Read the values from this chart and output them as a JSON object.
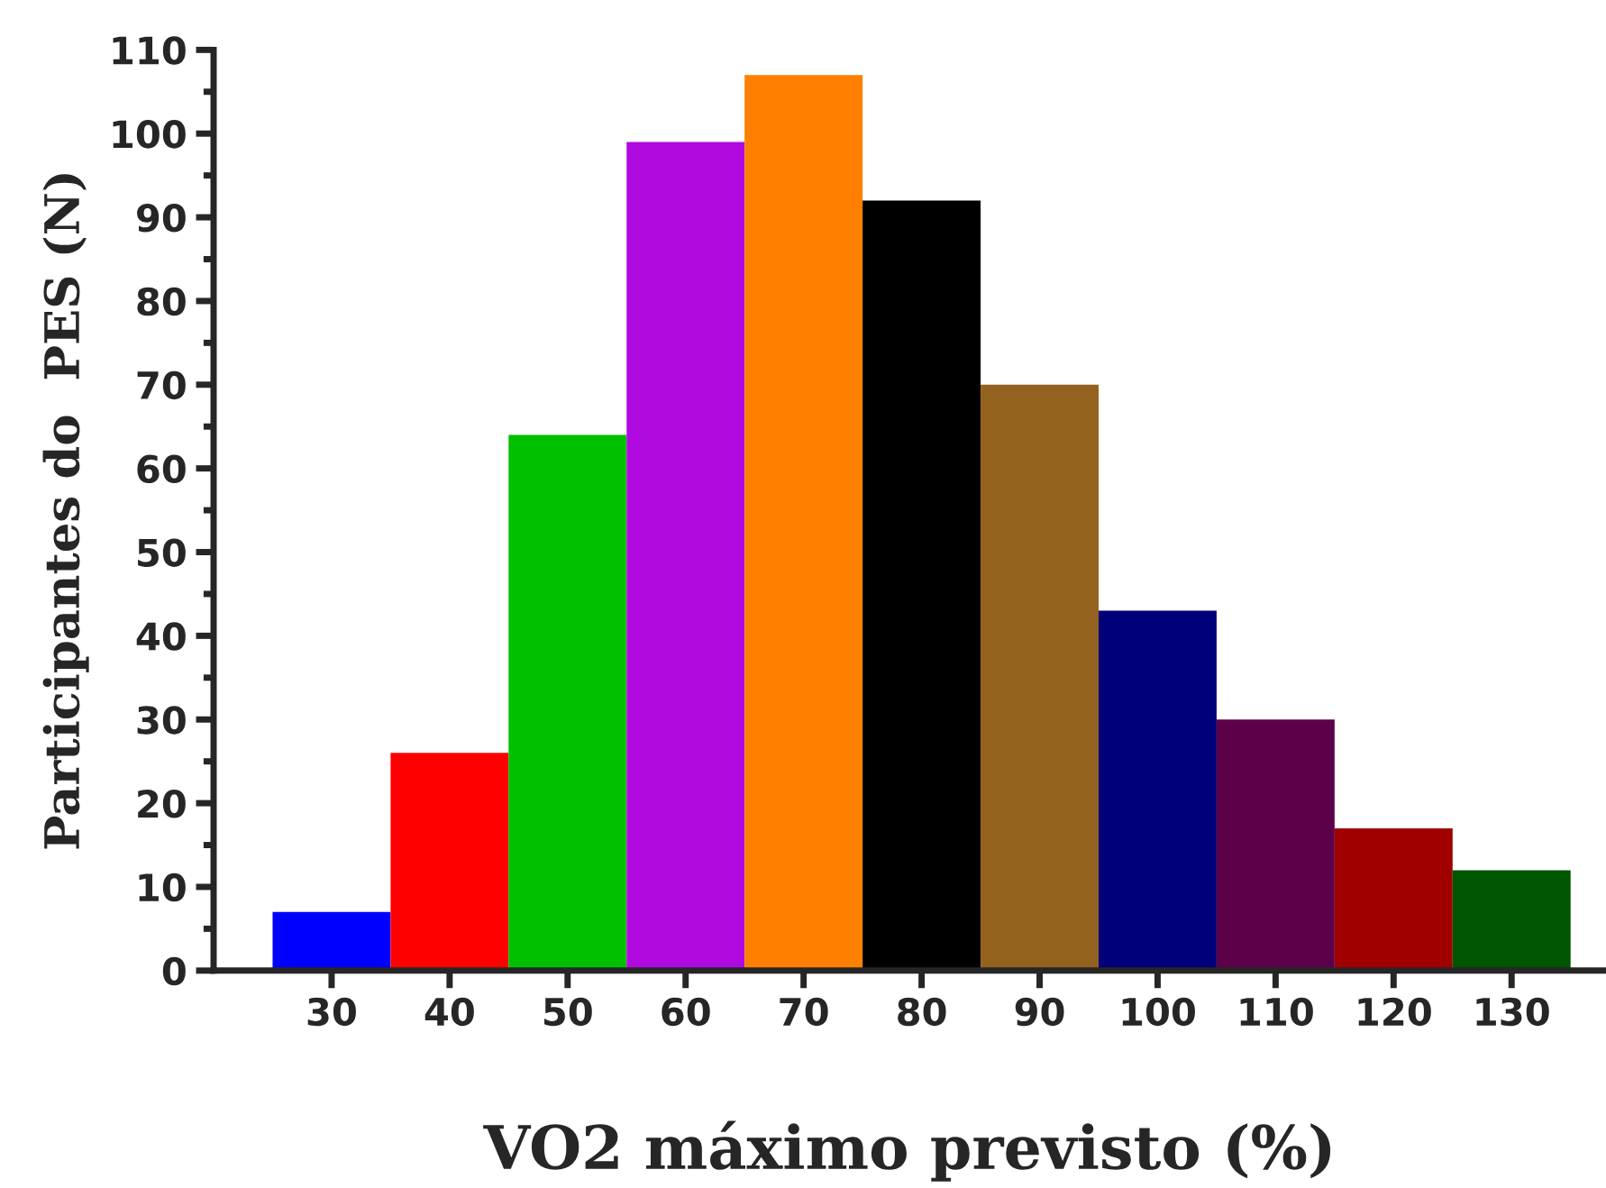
{
  "chart_data": {
    "type": "histogram",
    "xlabel": "VO2 máximo previsto (%)",
    "ylabel": "Participantes do  PES (N)",
    "bins": [
      25,
      35,
      45,
      55,
      65,
      75,
      85,
      95,
      105,
      115,
      125,
      135
    ],
    "values": [
      7,
      26,
      64,
      99,
      107,
      92,
      70,
      43,
      30,
      17,
      12
    ],
    "colors": [
      "#0000ff",
      "#ff0000",
      "#00c000",
      "#b00ae0",
      "#ff8000",
      "#000000",
      "#94621f",
      "#00007b",
      "#5c004a",
      "#a00000",
      "#005500"
    ],
    "xlim": [
      20,
      138
    ],
    "xticks": [
      30,
      40,
      50,
      60,
      70,
      80,
      90,
      100,
      110,
      120,
      130
    ],
    "ylim": [
      0,
      110
    ],
    "yticks": [
      0,
      10,
      20,
      30,
      40,
      50,
      60,
      70,
      80,
      90,
      100,
      110
    ],
    "grid": false,
    "legend": false
  }
}
